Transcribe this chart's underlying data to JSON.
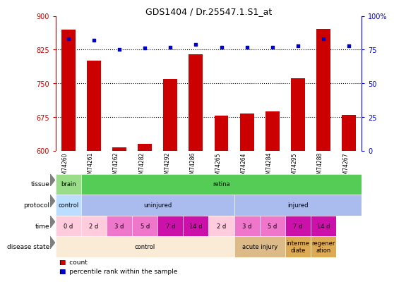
{
  "title": "GDS1404 / Dr.25547.1.S1_at",
  "samples": [
    "GSM74260",
    "GSM74261",
    "GSM74262",
    "GSM74282",
    "GSM74292",
    "GSM74286",
    "GSM74265",
    "GSM74264",
    "GSM74284",
    "GSM74295",
    "GSM74288",
    "GSM74267"
  ],
  "bar_values": [
    870,
    800,
    607,
    615,
    760,
    815,
    678,
    683,
    688,
    762,
    871,
    680
  ],
  "percentile_values": [
    83,
    82,
    75,
    76,
    77,
    79,
    77,
    77,
    77,
    78,
    83,
    78
  ],
  "ymin": 600,
  "ymax": 900,
  "yticks": [
    600,
    675,
    750,
    825,
    900
  ],
  "right_yticks": [
    0,
    25,
    50,
    75,
    100
  ],
  "bar_color": "#cc0000",
  "dot_color": "#0000cc",
  "dotted_line_values": [
    825,
    750,
    675
  ],
  "tissue_row": {
    "label": "tissue",
    "segments": [
      {
        "text": "brain",
        "start": 0,
        "end": 1,
        "color": "#99dd88"
      },
      {
        "text": "retina",
        "start": 1,
        "end": 12,
        "color": "#55cc55"
      }
    ]
  },
  "protocol_row": {
    "label": "protocol",
    "segments": [
      {
        "text": "control",
        "start": 0,
        "end": 1,
        "color": "#bbddff"
      },
      {
        "text": "uninjured",
        "start": 1,
        "end": 7,
        "color": "#aabbee"
      },
      {
        "text": "injured",
        "start": 7,
        "end": 12,
        "color": "#aabbee"
      }
    ]
  },
  "time_row": {
    "label": "time",
    "segments": [
      {
        "text": "0 d",
        "start": 0,
        "end": 1,
        "color": "#ffccdd"
      },
      {
        "text": "2 d",
        "start": 1,
        "end": 2,
        "color": "#ffccdd"
      },
      {
        "text": "3 d",
        "start": 2,
        "end": 3,
        "color": "#ee77cc"
      },
      {
        "text": "5 d",
        "start": 3,
        "end": 4,
        "color": "#ee77cc"
      },
      {
        "text": "7 d",
        "start": 4,
        "end": 5,
        "color": "#cc11aa"
      },
      {
        "text": "14 d",
        "start": 5,
        "end": 6,
        "color": "#cc11aa"
      },
      {
        "text": "2 d",
        "start": 6,
        "end": 7,
        "color": "#ffccdd"
      },
      {
        "text": "3 d",
        "start": 7,
        "end": 8,
        "color": "#ee77cc"
      },
      {
        "text": "5 d",
        "start": 8,
        "end": 9,
        "color": "#ee77cc"
      },
      {
        "text": "7 d",
        "start": 9,
        "end": 10,
        "color": "#cc11aa"
      },
      {
        "text": "14 d",
        "start": 10,
        "end": 11,
        "color": "#cc11aa"
      }
    ]
  },
  "disease_row": {
    "label": "disease state",
    "segments": [
      {
        "text": "control",
        "start": 0,
        "end": 7,
        "color": "#faebd7"
      },
      {
        "text": "acute injury",
        "start": 7,
        "end": 9,
        "color": "#ddbb88"
      },
      {
        "text": "interme\ndiate",
        "start": 9,
        "end": 10,
        "color": "#ddaa55"
      },
      {
        "text": "regener\nation",
        "start": 10,
        "end": 11,
        "color": "#ddaa55"
      }
    ]
  },
  "n_samples": 12,
  "xlabel_bg": "#dddddd",
  "legend_count_color": "#cc0000",
  "legend_dot_color": "#0000cc",
  "left_axis_color": "#cc0000",
  "right_axis_color": "#0000cc"
}
